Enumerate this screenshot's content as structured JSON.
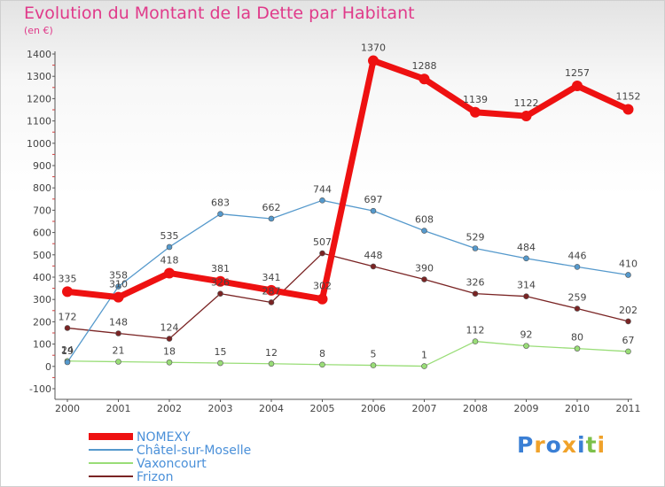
{
  "title": "Evolution du Montant de la Dette par Habitant",
  "subtitle": "(en €)",
  "logo": {
    "text": "Proxiti",
    "letters": [
      {
        "ch": "P",
        "color": "#3a7fd5"
      },
      {
        "ch": "r",
        "color": "#f0a22a"
      },
      {
        "ch": "o",
        "color": "#3a7fd5"
      },
      {
        "ch": "x",
        "color": "#f0a22a"
      },
      {
        "ch": "i",
        "color": "#3a7fd5"
      },
      {
        "ch": "t",
        "color": "#7cc04a"
      },
      {
        "ch": "i",
        "color": "#f0a22a"
      }
    ]
  },
  "chart_data": {
    "type": "line",
    "title": "Evolution du Montant de la Dette par Habitant",
    "subtitle": "(en €)",
    "xlabel": "",
    "ylabel": "",
    "categories": [
      "2000",
      "2001",
      "2002",
      "2003",
      "2004",
      "2005",
      "2006",
      "2007",
      "2008",
      "2009",
      "2010",
      "2011"
    ],
    "ylim": [
      -100,
      1400
    ],
    "yticks": [
      -100,
      0,
      100,
      200,
      300,
      400,
      500,
      600,
      700,
      800,
      900,
      1000,
      1100,
      1200,
      1300,
      1400
    ],
    "grid": false,
    "legend_position": "bottom-left",
    "series": [
      {
        "name": "NOMEXY",
        "color": "#ee1111",
        "values": [
          335,
          310,
          418,
          381,
          341,
          302,
          1370,
          1288,
          1139,
          1122,
          1257,
          1152
        ]
      },
      {
        "name": "Châtel-sur-Moselle",
        "color": "#5599cc",
        "values": [
          19,
          358,
          535,
          683,
          662,
          744,
          697,
          608,
          529,
          484,
          446,
          410
        ]
      },
      {
        "name": "Vaxoncourt",
        "color": "#99dd77",
        "values": [
          24,
          21,
          18,
          15,
          12,
          8,
          5,
          1,
          112,
          92,
          80,
          67
        ]
      },
      {
        "name": "Frizon",
        "color": "#7a2424",
        "values": [
          172,
          148,
          124,
          326,
          287,
          507,
          448,
          390,
          326,
          314,
          259,
          202
        ]
      }
    ]
  }
}
